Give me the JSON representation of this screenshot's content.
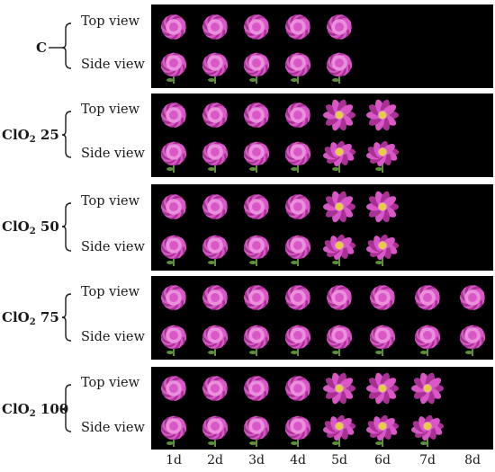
{
  "view_labels": {
    "top": "Top view",
    "side": "Side view"
  },
  "day_labels": [
    "1d",
    "2d",
    "3d",
    "4d",
    "5d",
    "6d",
    "7d",
    "8d"
  ],
  "groups": [
    {
      "label_main": "C",
      "label_sub": "",
      "label_tail": "",
      "days_shown": 5
    },
    {
      "label_main": "ClO",
      "label_sub": "2",
      "label_tail": " 25",
      "days_shown": 6
    },
    {
      "label_main": "ClO",
      "label_sub": "2",
      "label_tail": " 50",
      "days_shown": 6
    },
    {
      "label_main": "ClO",
      "label_sub": "2",
      "label_tail": " 75",
      "days_shown": 8
    },
    {
      "label_main": "ClO",
      "label_sub": "2",
      "label_tail": " 100",
      "days_shown": 7
    }
  ],
  "colors": {
    "panel_background": "#000000",
    "petal_main": "#d957c6",
    "petal_light": "#e98fdc",
    "petal_dark": "#a93196",
    "stamen": "#e6cf3a",
    "stem": "#5e8f3a"
  }
}
